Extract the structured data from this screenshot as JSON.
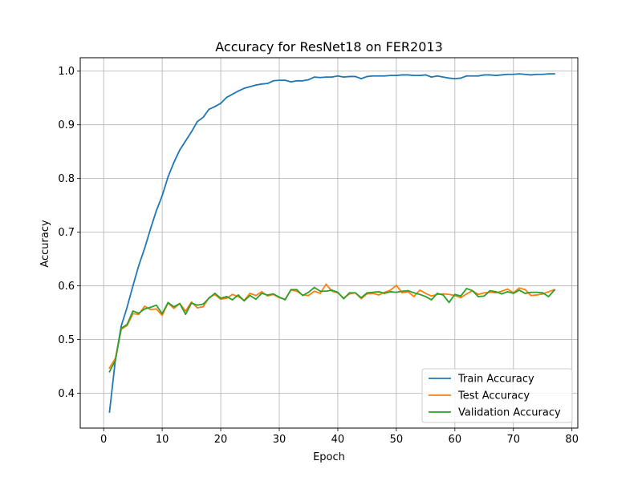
{
  "chart_data": {
    "type": "line",
    "title": "Accuracy for ResNet18 on FER2013",
    "xlabel": "Epoch",
    "ylabel": "Accuracy",
    "xlim": [
      -4,
      81
    ],
    "ylim": [
      0.335,
      1.025
    ],
    "xticks": [
      0,
      10,
      20,
      30,
      40,
      50,
      60,
      70,
      80
    ],
    "yticks": [
      0.4,
      0.5,
      0.6,
      0.7,
      0.8,
      0.9,
      1.0
    ],
    "xtick_labels": [
      "0",
      "10",
      "20",
      "30",
      "40",
      "50",
      "60",
      "70",
      "80"
    ],
    "ytick_labels": [
      "0.4",
      "0.5",
      "0.6",
      "0.7",
      "0.8",
      "0.9",
      "1.0"
    ],
    "grid": true,
    "legend_position": "lower-right",
    "x": [
      1,
      2,
      3,
      4,
      5,
      6,
      7,
      8,
      9,
      10,
      11,
      12,
      13,
      14,
      15,
      16,
      17,
      18,
      19,
      20,
      21,
      22,
      23,
      24,
      25,
      26,
      27,
      28,
      29,
      30,
      31,
      32,
      33,
      34,
      35,
      36,
      37,
      38,
      39,
      40,
      41,
      42,
      43,
      44,
      45,
      46,
      47,
      48,
      49,
      50,
      51,
      52,
      53,
      54,
      55,
      56,
      57,
      58,
      59,
      60,
      61,
      62,
      63,
      64,
      65,
      66,
      67,
      68,
      69,
      70,
      71,
      72,
      73,
      74,
      75,
      76,
      77
    ],
    "series": [
      {
        "name": "Train Accuracy",
        "color": "#1f77b4",
        "values": [
          0.365,
          0.462,
          0.525,
          0.56,
          0.6,
          0.638,
          0.67,
          0.706,
          0.74,
          0.768,
          0.803,
          0.83,
          0.853,
          0.87,
          0.887,
          0.906,
          0.914,
          0.929,
          0.934,
          0.94,
          0.951,
          0.957,
          0.963,
          0.968,
          0.971,
          0.974,
          0.976,
          0.977,
          0.982,
          0.983,
          0.983,
          0.98,
          0.982,
          0.982,
          0.984,
          0.989,
          0.988,
          0.989,
          0.989,
          0.991,
          0.989,
          0.99,
          0.99,
          0.986,
          0.99,
          0.991,
          0.991,
          0.991,
          0.992,
          0.992,
          0.993,
          0.993,
          0.992,
          0.992,
          0.993,
          0.989,
          0.991,
          0.989,
          0.987,
          0.986,
          0.987,
          0.991,
          0.991,
          0.991,
          0.993,
          0.993,
          0.992,
          0.993,
          0.994,
          0.994,
          0.995,
          0.994,
          0.993,
          0.994,
          0.994,
          0.995,
          0.995
        ]
      },
      {
        "name": "Test Accuracy",
        "color": "#ff7f0e",
        "values": [
          0.447,
          0.465,
          0.519,
          0.526,
          0.548,
          0.547,
          0.562,
          0.556,
          0.557,
          0.545,
          0.568,
          0.558,
          0.567,
          0.553,
          0.57,
          0.559,
          0.561,
          0.578,
          0.584,
          0.575,
          0.577,
          0.584,
          0.58,
          0.573,
          0.586,
          0.582,
          0.589,
          0.581,
          0.584,
          0.578,
          0.575,
          0.592,
          0.59,
          0.583,
          0.582,
          0.59,
          0.586,
          0.603,
          0.59,
          0.587,
          0.577,
          0.585,
          0.587,
          0.576,
          0.585,
          0.586,
          0.583,
          0.588,
          0.592,
          0.601,
          0.587,
          0.589,
          0.58,
          0.592,
          0.586,
          0.581,
          0.584,
          0.585,
          0.584,
          0.582,
          0.578,
          0.585,
          0.591,
          0.584,
          0.587,
          0.588,
          0.587,
          0.59,
          0.594,
          0.587,
          0.596,
          0.593,
          0.582,
          0.583,
          0.585,
          0.589,
          0.593
        ]
      },
      {
        "name": "Validation Accuracy",
        "color": "#2ca02c",
        "values": [
          0.44,
          0.461,
          0.521,
          0.528,
          0.553,
          0.549,
          0.557,
          0.56,
          0.564,
          0.548,
          0.569,
          0.561,
          0.567,
          0.547,
          0.568,
          0.564,
          0.566,
          0.577,
          0.586,
          0.577,
          0.58,
          0.574,
          0.583,
          0.572,
          0.582,
          0.575,
          0.586,
          0.583,
          0.585,
          0.579,
          0.574,
          0.593,
          0.593,
          0.582,
          0.588,
          0.597,
          0.59,
          0.59,
          0.592,
          0.588,
          0.576,
          0.587,
          0.587,
          0.578,
          0.587,
          0.588,
          0.589,
          0.586,
          0.589,
          0.588,
          0.59,
          0.591,
          0.587,
          0.584,
          0.58,
          0.574,
          0.586,
          0.583,
          0.569,
          0.584,
          0.581,
          0.595,
          0.591,
          0.58,
          0.581,
          0.591,
          0.589,
          0.585,
          0.589,
          0.586,
          0.592,
          0.586,
          0.588,
          0.588,
          0.587,
          0.58,
          0.592
        ]
      }
    ]
  }
}
